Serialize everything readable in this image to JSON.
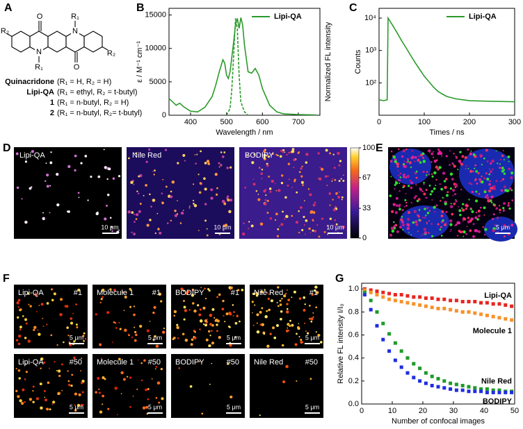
{
  "panel_letters": [
    "A",
    "B",
    "C",
    "D",
    "E",
    "F",
    "G"
  ],
  "structure": {
    "atoms": [
      "O",
      "N",
      "R₁",
      "N",
      "R₁",
      "O",
      "R₂",
      "R₂"
    ],
    "compounds": [
      {
        "name": "Quinacridone",
        "substituents": "(R₁ = H, R₂ = H)"
      },
      {
        "name": "Lipi-QA",
        "substituents": "(R₁ = ethyl, R₂ = t-butyl)"
      },
      {
        "name": "1",
        "substituents": "(R₁ = n-butyl, R₂ = H)"
      },
      {
        "name": "2",
        "substituents": "(R₁ = n-butyl, R₂= t-butyl)"
      }
    ]
  },
  "chart_data": [
    {
      "type": "line",
      "xlabel": "Wavelength / nm",
      "ylabel": "ε / M⁻¹ cm⁻¹",
      "y2label": "Normalized FL intensity",
      "xlim": [
        340,
        760
      ],
      "xticks": [
        400,
        500,
        600,
        700
      ],
      "ylim": [
        0,
        16000
      ],
      "yticks": [
        0,
        5000,
        10000,
        15000
      ],
      "legend": "upper right",
      "series": [
        {
          "name": "Lipi-QA",
          "color": "#2a9a2a",
          "x": [
            340,
            350,
            360,
            370,
            380,
            400,
            420,
            440,
            460,
            470,
            480,
            490,
            495,
            500,
            505,
            510,
            520,
            525,
            530,
            535,
            540,
            545,
            550,
            560,
            570,
            580,
            590,
            600,
            620,
            640,
            660,
            700,
            750
          ],
          "values": [
            2500,
            2000,
            1500,
            1800,
            1300,
            600,
            500,
            1200,
            2800,
            4500,
            6500,
            8300,
            7800,
            6000,
            5500,
            6500,
            11000,
            13500,
            14500,
            13000,
            14600,
            13500,
            10500,
            6500,
            6300,
            7000,
            6000,
            4000,
            1500,
            500,
            200,
            100,
            50
          ]
        },
        {
          "color": "#2a9a2a",
          "dash": true,
          "x": [
            500,
            510,
            515,
            520,
            525,
            530,
            535,
            540,
            550,
            560
          ],
          "values": [
            0,
            1000,
            4000,
            9000,
            14500,
            13000,
            6000,
            2000,
            500,
            0
          ]
        }
      ]
    },
    {
      "type": "line",
      "xlabel": "Times / ns",
      "ylabel": "Counts",
      "yscale": "log",
      "xlim": [
        0,
        300
      ],
      "xticks": [
        0,
        100,
        200,
        300
      ],
      "ylim": [
        10,
        20000
      ],
      "yticks": [
        {
          "value": 100,
          "label": "10²"
        },
        {
          "value": 1000,
          "label": "10³"
        },
        {
          "value": 10000,
          "label": "10⁴"
        }
      ],
      "legend": "upper right",
      "x": [
        0,
        10,
        18,
        20,
        30,
        40,
        50,
        60,
        70,
        80,
        90,
        100,
        110,
        120,
        130,
        140,
        150,
        170,
        200,
        250,
        300
      ],
      "series": [
        {
          "name": "Lipi-QA",
          "color": "#2a9a2a",
          "values": [
            30,
            28,
            30,
            10000,
            6000,
            3500,
            2000,
            1200,
            700,
            420,
            260,
            160,
            110,
            75,
            55,
            45,
            38,
            32,
            28,
            27,
            26
          ]
        }
      ]
    },
    {
      "type": "scatter",
      "xlabel": "Number of confocal images",
      "ylabel": "Relative FL intensity I/I₀",
      "xlim": [
        0,
        50
      ],
      "xticks": [
        0,
        10,
        20,
        30,
        40,
        50
      ],
      "ylim": [
        0,
        1.05
      ],
      "yticks": [
        {
          "value": 0,
          "label": "0.0"
        },
        0.2,
        0.4,
        0.6,
        0.8,
        {
          "value": 1,
          "label": "1.0"
        }
      ],
      "legend": "inline",
      "x": [
        1,
        3,
        5,
        7,
        9,
        11,
        13,
        15,
        17,
        19,
        21,
        23,
        25,
        27,
        29,
        31,
        33,
        35,
        37,
        39,
        41,
        43,
        45,
        47,
        49
      ],
      "series": [
        {
          "name": "Lipi-QA",
          "color": "#e8251f",
          "values": [
            1.0,
            0.99,
            0.98,
            0.97,
            0.96,
            0.95,
            0.95,
            0.94,
            0.93,
            0.93,
            0.92,
            0.92,
            0.91,
            0.91,
            0.9,
            0.9,
            0.89,
            0.89,
            0.89,
            0.88,
            0.88,
            0.87,
            0.87,
            0.86,
            0.85
          ]
        },
        {
          "name": "Molecule 1",
          "color": "#f7922a",
          "values": [
            0.99,
            0.97,
            0.95,
            0.93,
            0.91,
            0.9,
            0.89,
            0.88,
            0.87,
            0.86,
            0.85,
            0.84,
            0.83,
            0.83,
            0.82,
            0.81,
            0.8,
            0.8,
            0.79,
            0.78,
            0.77,
            0.76,
            0.75,
            0.74,
            0.73
          ]
        },
        {
          "name": "Nile Red",
          "color": "#1f9a2a",
          "values": [
            0.97,
            0.9,
            0.8,
            0.7,
            0.61,
            0.53,
            0.46,
            0.4,
            0.35,
            0.31,
            0.27,
            0.24,
            0.22,
            0.2,
            0.18,
            0.17,
            0.16,
            0.15,
            0.14,
            0.13,
            0.13,
            0.12,
            0.12,
            0.11,
            0.11
          ]
        },
        {
          "name": "BODIPY",
          "color": "#1f2ee0",
          "values": [
            0.95,
            0.82,
            0.68,
            0.56,
            0.46,
            0.38,
            0.32,
            0.27,
            0.23,
            0.2,
            0.18,
            0.16,
            0.15,
            0.14,
            0.13,
            0.12,
            0.12,
            0.11,
            0.11,
            0.11,
            0.1,
            0.1,
            0.1,
            0.1,
            0.1
          ]
        }
      ]
    }
  ],
  "panel_d": {
    "images": [
      {
        "label": "Lipi-QA",
        "scale_bar": "10 μm"
      },
      {
        "label": "Nile Red",
        "scale_bar": "10 μm"
      },
      {
        "label": "BODIPY",
        "scale_bar": "10 μm"
      }
    ],
    "colorbar": {
      "lim": [
        0,
        100
      ],
      "ticks": [
        0,
        33,
        67,
        100
      ]
    }
  },
  "panel_e": {
    "scale_bar": "5 μm"
  },
  "panel_f": {
    "images": [
      {
        "label": "Lipi-QA",
        "frame": "#1",
        "scale_bar": "5 μm"
      },
      {
        "label": "Molecule 1",
        "frame": "#1",
        "scale_bar": "5 μm"
      },
      {
        "label": "BODIPY",
        "frame": "#1",
        "scale_bar": "5 μm"
      },
      {
        "label": "Nile Red",
        "frame": "#1",
        "scale_bar": "5 μm"
      },
      {
        "label": "Lipi-QA",
        "frame": "#50",
        "scale_bar": "5 μm"
      },
      {
        "label": "Molecule 1",
        "frame": "#50",
        "scale_bar": "5 μm"
      },
      {
        "label": "BODIPY",
        "frame": "#50",
        "scale_bar": "5 μm"
      },
      {
        "label": "Nile Red",
        "frame": "#50",
        "scale_bar": "5 μm"
      }
    ]
  }
}
